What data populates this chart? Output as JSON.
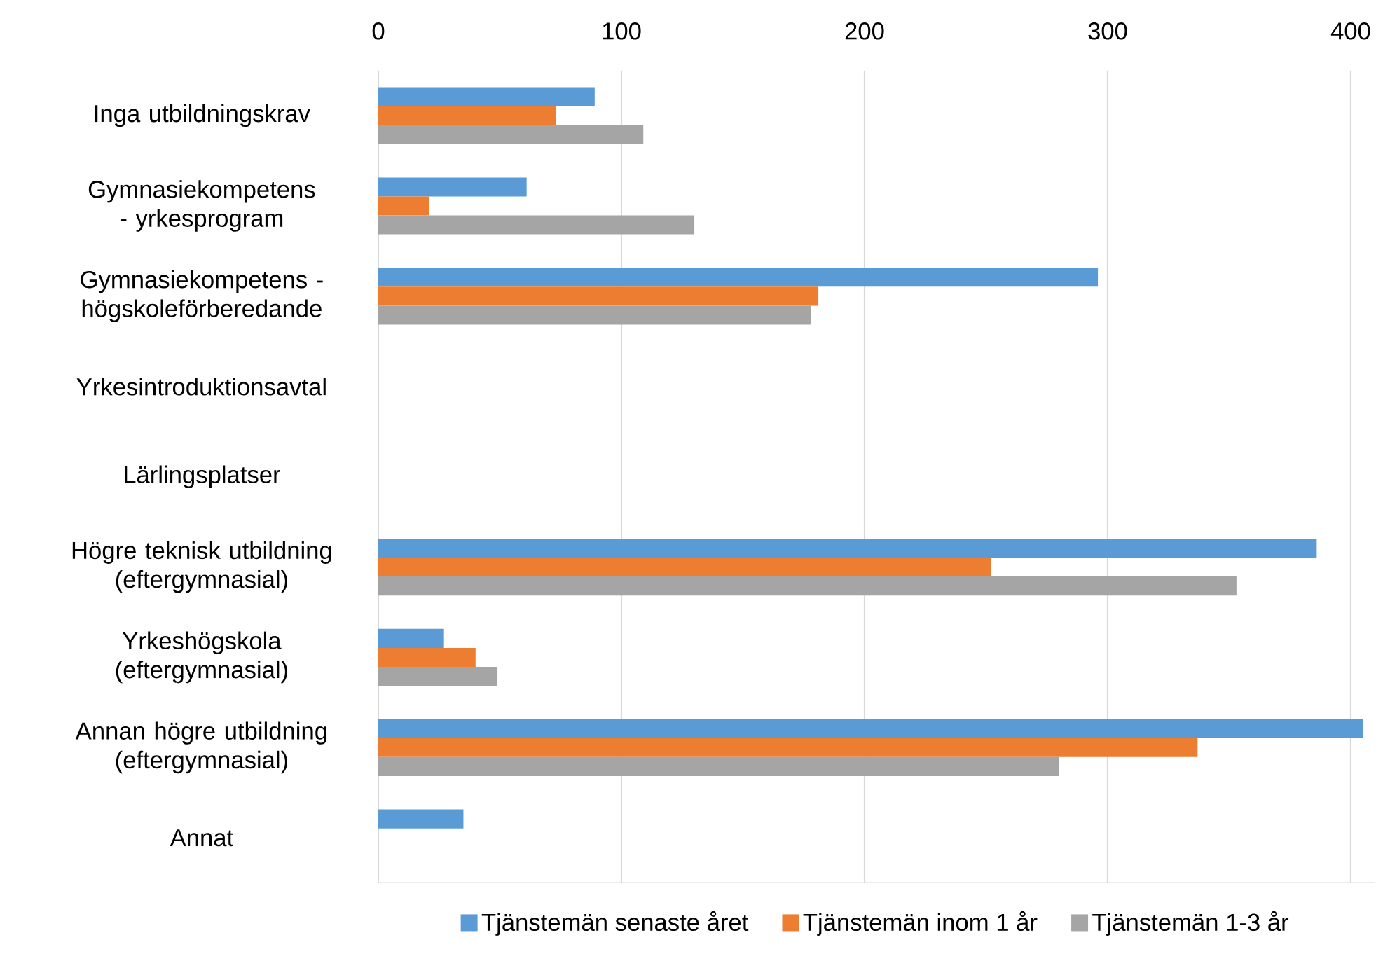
{
  "chart_data": {
    "type": "bar",
    "orientation": "horizontal",
    "categories": [
      "Inga utbildningskrav",
      "Gymnasiekompetens - yrkesprogram",
      "Gymnasiekompetens - högskoleförberedande",
      "Yrkesintroduktionsavtal",
      "Lärlingsplatser",
      "Högre teknisk utbildning (eftergymnasial)",
      "Yrkeshögskola (eftergymnasial)",
      "Annan högre utbildning (eftergymnasial)",
      "Annat"
    ],
    "series": [
      {
        "name": "Tjänstemän senaste året",
        "color": "#5b9bd5",
        "values": [
          89,
          61,
          296,
          null,
          null,
          386,
          27,
          405,
          35
        ]
      },
      {
        "name": "Tjänstemän inom 1 år",
        "color": "#ed7d31",
        "values": [
          73,
          21,
          181,
          null,
          null,
          252,
          40,
          337,
          null
        ]
      },
      {
        "name": "Tjänstemän 1-3 år",
        "color": "#a5a5a5",
        "values": [
          109,
          130,
          178,
          null,
          null,
          353,
          49,
          280,
          null
        ]
      }
    ],
    "xlim": [
      0,
      410
    ],
    "xticks": [
      0,
      100,
      200,
      300,
      400
    ],
    "grid": "x",
    "legend": "bottom"
  }
}
